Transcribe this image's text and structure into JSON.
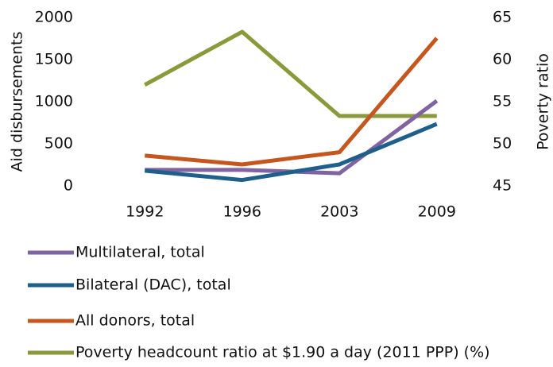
{
  "chart_data": {
    "type": "line",
    "categories": [
      "1992",
      "1996",
      "2003",
      "2009"
    ],
    "ylabel": "Aid disbursements",
    "y2label": "Poverty ratio",
    "ylim": [
      0,
      2000
    ],
    "yticks": [
      0,
      500,
      1000,
      1500,
      2000
    ],
    "y2lim": [
      45,
      65
    ],
    "y2ticks": [
      45,
      50,
      55,
      60,
      65
    ],
    "series": [
      {
        "name": "Multilateral, total",
        "color": "#8064a2",
        "values": [
          190,
          190,
          150,
          1010
        ]
      },
      {
        "name": "Bilateral (DAC), total",
        "color": "#1f5f8b",
        "values": [
          180,
          70,
          255,
          735
        ]
      },
      {
        "name": "All donors, total",
        "color": "#c5561e",
        "values": [
          360,
          255,
          400,
          1755
        ]
      },
      {
        "name": "Poverty headcount ratio at $1.90 a day (2011 PPP) (%)",
        "color": "#8a9a3b",
        "axis": "y2",
        "values": [
          57.0,
          63.3,
          53.3,
          53.3
        ]
      }
    ]
  }
}
